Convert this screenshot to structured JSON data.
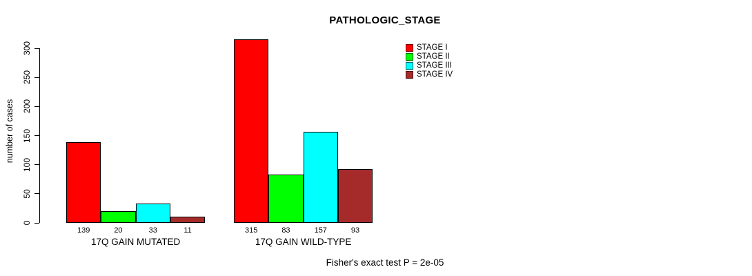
{
  "chart_data": {
    "type": "bar",
    "title": "PATHOLOGIC_STAGE",
    "xlabel": "",
    "ylabel": "number of cases",
    "ylim": [
      0,
      300
    ],
    "yticks": [
      0,
      50,
      100,
      150,
      200,
      250,
      300
    ],
    "grid": false,
    "legend_position": "top-right",
    "categories": [
      "STAGE I",
      "STAGE II",
      "STAGE III",
      "STAGE IV"
    ],
    "colors": [
      "#FF0000",
      "#00FF00",
      "#00FFFF",
      "#A52A2A"
    ],
    "series": [
      {
        "name": "17Q GAIN MUTATED",
        "values": [
          139,
          20,
          33,
          11
        ]
      },
      {
        "name": "17Q GAIN WILD-TYPE",
        "values": [
          315,
          83,
          157,
          93
        ]
      }
    ],
    "bar_value_labels": true,
    "annotation": "Fisher's exact test P = 2e-05"
  },
  "legend": {
    "items": [
      {
        "label": "STAGE I",
        "color": "#FF0000"
      },
      {
        "label": "STAGE II",
        "color": "#00FF00"
      },
      {
        "label": "STAGE III",
        "color": "#00FFFF"
      },
      {
        "label": "STAGE IV",
        "color": "#A52A2A"
      }
    ]
  }
}
